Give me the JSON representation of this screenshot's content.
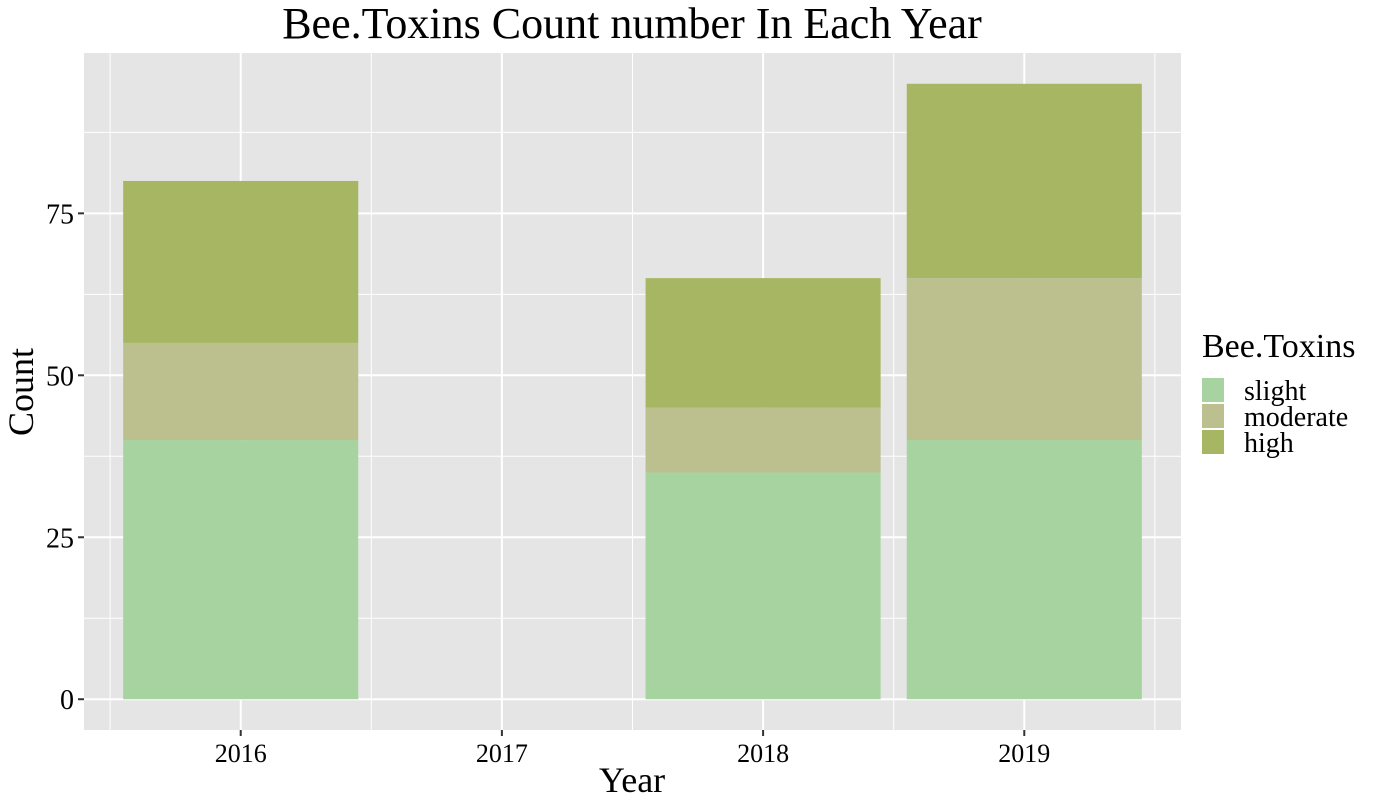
{
  "chart_data": {
    "type": "bar",
    "stacked": true,
    "title": "Bee.Toxins Count number In Each Year",
    "xlabel": "Year",
    "ylabel": "Count",
    "categories": [
      "2016",
      "2017",
      "2018",
      "2019"
    ],
    "series": [
      {
        "name": "slight",
        "color": "#a6d39f",
        "values": [
          40,
          0,
          35,
          40
        ]
      },
      {
        "name": "moderate",
        "color": "#bcc08f",
        "values": [
          15,
          0,
          10,
          25
        ]
      },
      {
        "name": "high",
        "color": "#a6b662",
        "values": [
          25,
          0,
          20,
          30
        ]
      }
    ],
    "y_ticks": [
      0,
      25,
      50,
      75
    ],
    "ylim": [
      -4.75,
      99.75
    ],
    "legend_title": "Bee.Toxins",
    "legend_position": "right",
    "grid": true,
    "panel_background": "#e5e5e5",
    "gridline_color": "#ffffff"
  }
}
